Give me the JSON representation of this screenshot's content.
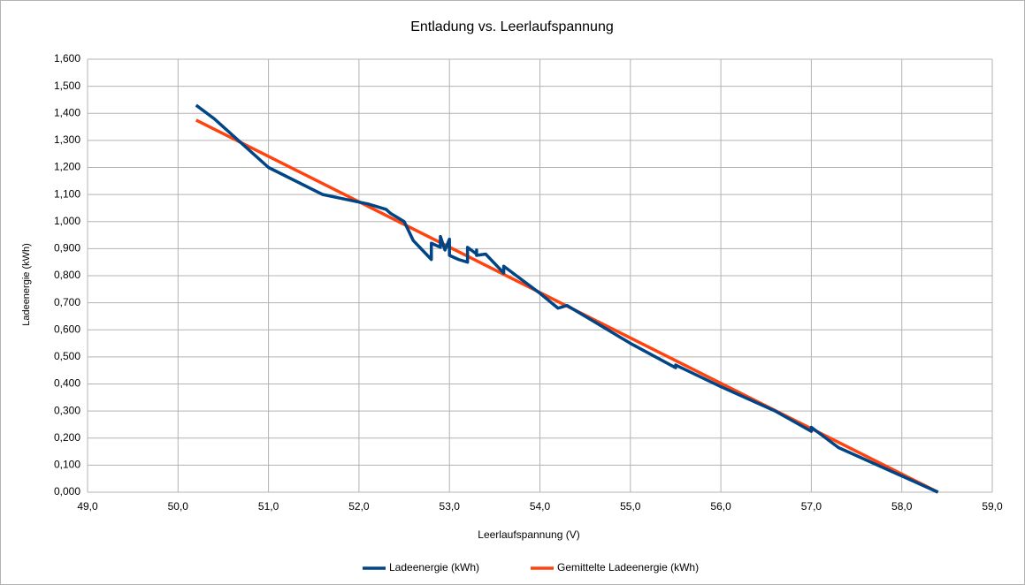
{
  "chart_data": {
    "type": "line",
    "title": "Entladung vs. Leerlaufspannung",
    "x_label": "Leerlaufspannung (V)",
    "y_label": "Ladeenergie (kWh)",
    "xlim": [
      49,
      59
    ],
    "ylim": [
      0,
      1.6
    ],
    "xticks": [
      {
        "value": 49,
        "label": "49,0"
      },
      {
        "value": 50,
        "label": "50,0"
      },
      {
        "value": 51,
        "label": "51,0"
      },
      {
        "value": 52,
        "label": "52,0"
      },
      {
        "value": 53,
        "label": "53,0"
      },
      {
        "value": 54,
        "label": "54,0"
      },
      {
        "value": 55,
        "label": "55,0"
      },
      {
        "value": 56,
        "label": "56,0"
      },
      {
        "value": 57,
        "label": "57,0"
      },
      {
        "value": 58,
        "label": "58,0"
      },
      {
        "value": 59,
        "label": "59,0"
      }
    ],
    "yticks": [
      {
        "value": 0,
        "label": "0,000"
      },
      {
        "value": 0.1,
        "label": "0,100"
      },
      {
        "value": 0.2,
        "label": "0,200"
      },
      {
        "value": 0.3,
        "label": "0,300"
      },
      {
        "value": 0.4,
        "label": "0,400"
      },
      {
        "value": 0.5,
        "label": "0,500"
      },
      {
        "value": 0.6,
        "label": "0,600"
      },
      {
        "value": 0.7,
        "label": "0,700"
      },
      {
        "value": 0.8,
        "label": "0,800"
      },
      {
        "value": 0.9,
        "label": "0,900"
      },
      {
        "value": 1.0,
        "label": "1,000"
      },
      {
        "value": 1.1,
        "label": "1,100"
      },
      {
        "value": 1.2,
        "label": "1,200"
      },
      {
        "value": 1.3,
        "label": "1,300"
      },
      {
        "value": 1.4,
        "label": "1,400"
      },
      {
        "value": 1.5,
        "label": "1,500"
      },
      {
        "value": 1.6,
        "label": "1,600"
      }
    ],
    "grid": true,
    "legend": "bottom",
    "series": [
      {
        "name": "Ladeenergie (kWh)",
        "color": "#004586",
        "x": [
          50.2,
          50.4,
          50.7,
          51.0,
          51.6,
          52.1,
          52.3,
          52.35,
          52.5,
          52.6,
          52.8,
          52.8,
          52.9,
          52.9,
          52.95,
          53.0,
          53.0,
          53.1,
          53.2,
          53.2,
          53.3,
          53.3,
          53.3,
          53.4,
          53.6,
          53.6,
          53.9,
          54.0,
          54.2,
          54.3,
          54.6,
          55.0,
          55.5,
          55.5,
          56.0,
          56.6,
          57.0,
          57.0,
          57.3,
          58.4
        ],
        "values": [
          1.43,
          1.38,
          1.29,
          1.2,
          1.1,
          1.065,
          1.045,
          1.03,
          1.0,
          0.93,
          0.86,
          0.92,
          0.905,
          0.945,
          0.895,
          0.935,
          0.875,
          0.86,
          0.85,
          0.905,
          0.88,
          0.895,
          0.875,
          0.88,
          0.81,
          0.835,
          0.76,
          0.735,
          0.68,
          0.69,
          0.63,
          0.55,
          0.46,
          0.47,
          0.39,
          0.3,
          0.225,
          0.24,
          0.165,
          0.0
        ]
      },
      {
        "name": "Gemittelte Ladeenergie (kWh)",
        "color": "#ff420e",
        "x": [
          50.2,
          58.4
        ],
        "values": [
          1.375,
          0.0
        ]
      }
    ]
  }
}
